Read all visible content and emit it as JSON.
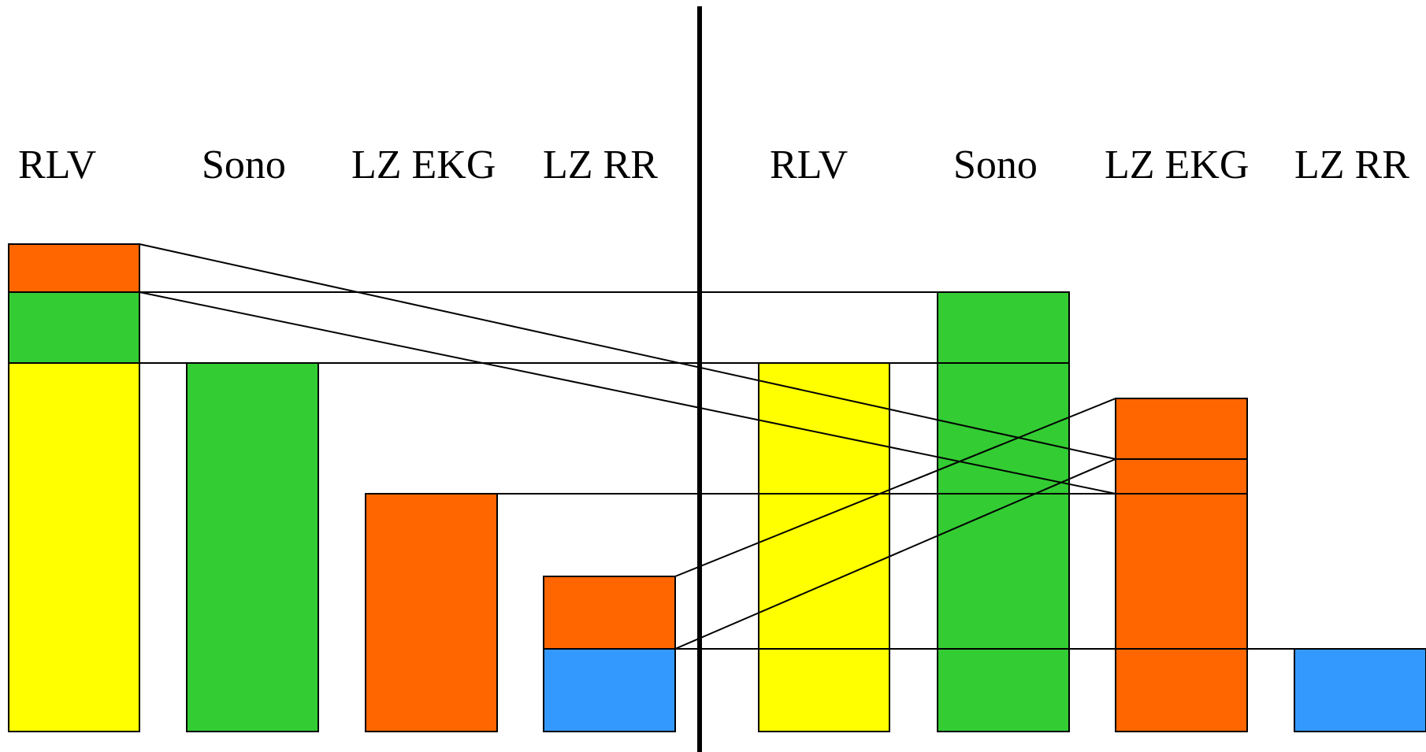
{
  "colors": {
    "orange": "#FF6600",
    "green": "#33CC33",
    "yellow": "#FFFF00",
    "blue": "#3399FF",
    "line": "#000000"
  },
  "left_panel": {
    "labels": [
      "RLV",
      "Sono",
      "LZ EKG",
      "LZ RR"
    ],
    "columns": [
      {
        "segments": [
          "orange",
          "green",
          "yellow"
        ]
      },
      {
        "segments": [
          "green"
        ]
      },
      {
        "segments": [
          "orange"
        ]
      },
      {
        "segments": [
          "orange",
          "blue"
        ]
      }
    ]
  },
  "right_panel": {
    "labels": [
      "RLV",
      "Sono",
      "LZ EKG",
      "LZ RR"
    ],
    "columns": [
      {
        "segments": [
          "yellow"
        ]
      },
      {
        "segments": [
          "green"
        ]
      },
      {
        "segments": [
          "orange"
        ]
      },
      {
        "segments": [
          "blue"
        ]
      }
    ]
  }
}
